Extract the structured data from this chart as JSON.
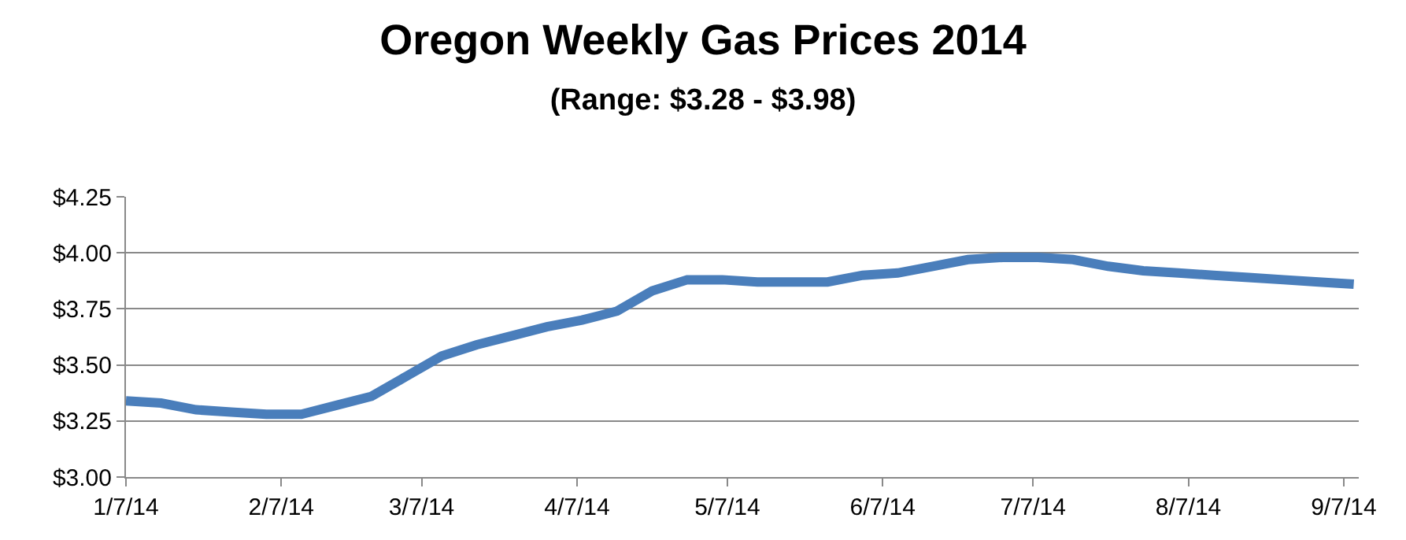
{
  "chart_data": {
    "type": "line",
    "title": "Oregon Weekly Gas Prices 2014",
    "subtitle": "(Range: $3.28 - $3.98)",
    "x": [
      "2014-01-07",
      "2014-01-14",
      "2014-01-21",
      "2014-01-28",
      "2014-02-04",
      "2014-02-11",
      "2014-02-18",
      "2014-02-25",
      "2014-03-04",
      "2014-03-11",
      "2014-03-18",
      "2014-03-25",
      "2014-04-01",
      "2014-04-08",
      "2014-04-15",
      "2014-04-22",
      "2014-04-29",
      "2014-05-06",
      "2014-05-13",
      "2014-05-20",
      "2014-05-27",
      "2014-06-03",
      "2014-06-10",
      "2014-06-17",
      "2014-06-24",
      "2014-07-01",
      "2014-07-08",
      "2014-07-15",
      "2014-07-22",
      "2014-07-29",
      "2014-08-05",
      "2014-08-12",
      "2014-08-19",
      "2014-08-26",
      "2014-09-02",
      "2014-09-09"
    ],
    "series": [
      {
        "color": "#4a7ebb",
        "values": [
          3.34,
          3.33,
          3.3,
          3.29,
          3.28,
          3.28,
          3.32,
          3.36,
          3.45,
          3.54,
          3.59,
          3.63,
          3.67,
          3.7,
          3.74,
          3.83,
          3.88,
          3.88,
          3.87,
          3.87,
          3.87,
          3.9,
          3.91,
          3.94,
          3.97,
          3.98,
          3.98,
          3.97,
          3.94,
          3.92,
          3.91,
          3.9,
          3.89,
          3.88,
          3.87,
          3.86
        ]
      }
    ],
    "xlim": [
      "2014-01-07",
      "2014-09-10"
    ],
    "xticks": [
      {
        "value": "2014-01-07",
        "label": "1/7/14"
      },
      {
        "value": "2014-02-07",
        "label": "2/7/14"
      },
      {
        "value": "2014-03-07",
        "label": "3/7/14"
      },
      {
        "value": "2014-04-07",
        "label": "4/7/14"
      },
      {
        "value": "2014-05-07",
        "label": "5/7/14"
      },
      {
        "value": "2014-06-07",
        "label": "6/7/14"
      },
      {
        "value": "2014-07-07",
        "label": "7/7/14"
      },
      {
        "value": "2014-08-07",
        "label": "8/7/14"
      },
      {
        "value": "2014-09-07",
        "label": "9/7/14"
      }
    ],
    "ylim": [
      3.0,
      4.25
    ],
    "yticks": [
      {
        "value": 3.0,
        "label": "$3.00"
      },
      {
        "value": 3.25,
        "label": "$3.25"
      },
      {
        "value": 3.5,
        "label": "$3.50"
      },
      {
        "value": 3.75,
        "label": "$3.75"
      },
      {
        "value": 4.0,
        "label": "$4.00"
      },
      {
        "value": 4.25,
        "label": "$4.25"
      }
    ],
    "grid": "y",
    "marker": "none",
    "line_style": "solid"
  }
}
